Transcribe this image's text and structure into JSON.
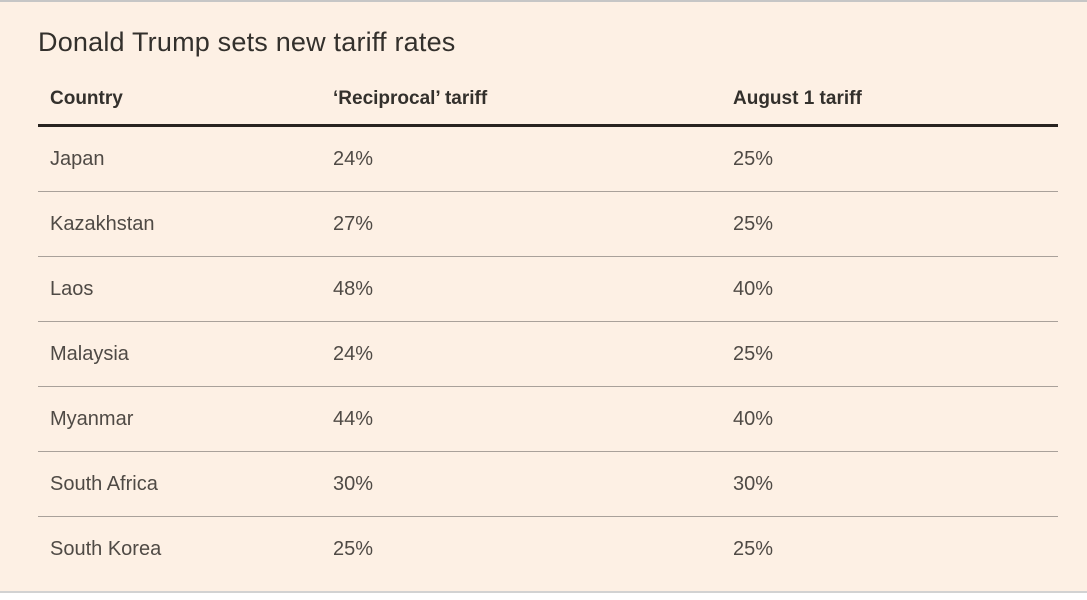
{
  "chart_data": {
    "type": "table",
    "title": "Donald Trump sets new tariff rates",
    "columns": [
      "Country",
      "‘Reciprocal’ tariff",
      "August 1 tariff"
    ],
    "rows": [
      [
        "Japan",
        "24%",
        "25%"
      ],
      [
        "Kazakhstan",
        "27%",
        "25%"
      ],
      [
        "Laos",
        "48%",
        "40%"
      ],
      [
        "Malaysia",
        "24%",
        "25%"
      ],
      [
        "Myanmar",
        "44%",
        "40%"
      ],
      [
        "South Africa",
        "30%",
        "30%"
      ],
      [
        "South Korea",
        "25%",
        "25%"
      ]
    ],
    "layout": {
      "legend": "none",
      "grid": "horizontal row dividers only"
    }
  },
  "colors": {
    "panel_background": "#fdf0e4",
    "page_background": "#ffffff",
    "title_text": "#33302c",
    "header_text": "#33302c",
    "body_text": "#4f4a45",
    "heavy_rule": "#28231f",
    "row_divider": "#a9a19a",
    "top_border": "#c6c6c6",
    "bottom_border": "#d2d2d2"
  }
}
